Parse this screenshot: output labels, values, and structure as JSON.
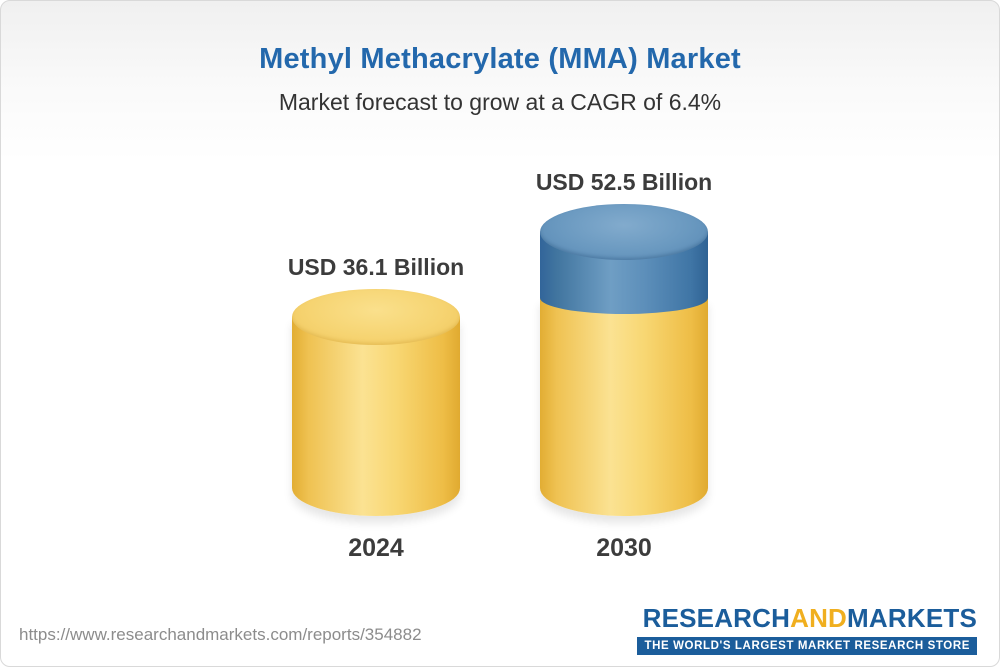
{
  "header": {
    "title": "Methyl Methacrylate (MMA) Market",
    "subtitle": "Market forecast to grow at a CAGR of 6.4%"
  },
  "chart_data": {
    "type": "bar",
    "title": "Methyl Methacrylate (MMA) Market",
    "subtitle": "Market forecast to grow at a CAGR of 6.4%",
    "unit": "USD Billion",
    "cagr_percent": 6.4,
    "categories": [
      "2024",
      "2030"
    ],
    "values": [
      36.1,
      52.5
    ],
    "value_labels": [
      "USD 36.1 Billion",
      "USD 52.5 Billion"
    ],
    "legend": "none",
    "grid": "off",
    "layout_hint": "3D cylinder bars; 2030 bar shows base value in yellow and incremental growth segment in blue",
    "colors": {
      "base_bar": "#F5CB5C",
      "growth_segment": "#4A7FAD",
      "title_text": "#2368AC",
      "label_text": "#3C3C3C"
    }
  },
  "footer": {
    "url": "https://www.researchandmarkets.com/reports/354882",
    "logo": {
      "part1": "RESEARCH",
      "part2": "AND",
      "part3": "MARKETS",
      "tagline": "THE WORLD'S LARGEST MARKET RESEARCH STORE"
    }
  }
}
